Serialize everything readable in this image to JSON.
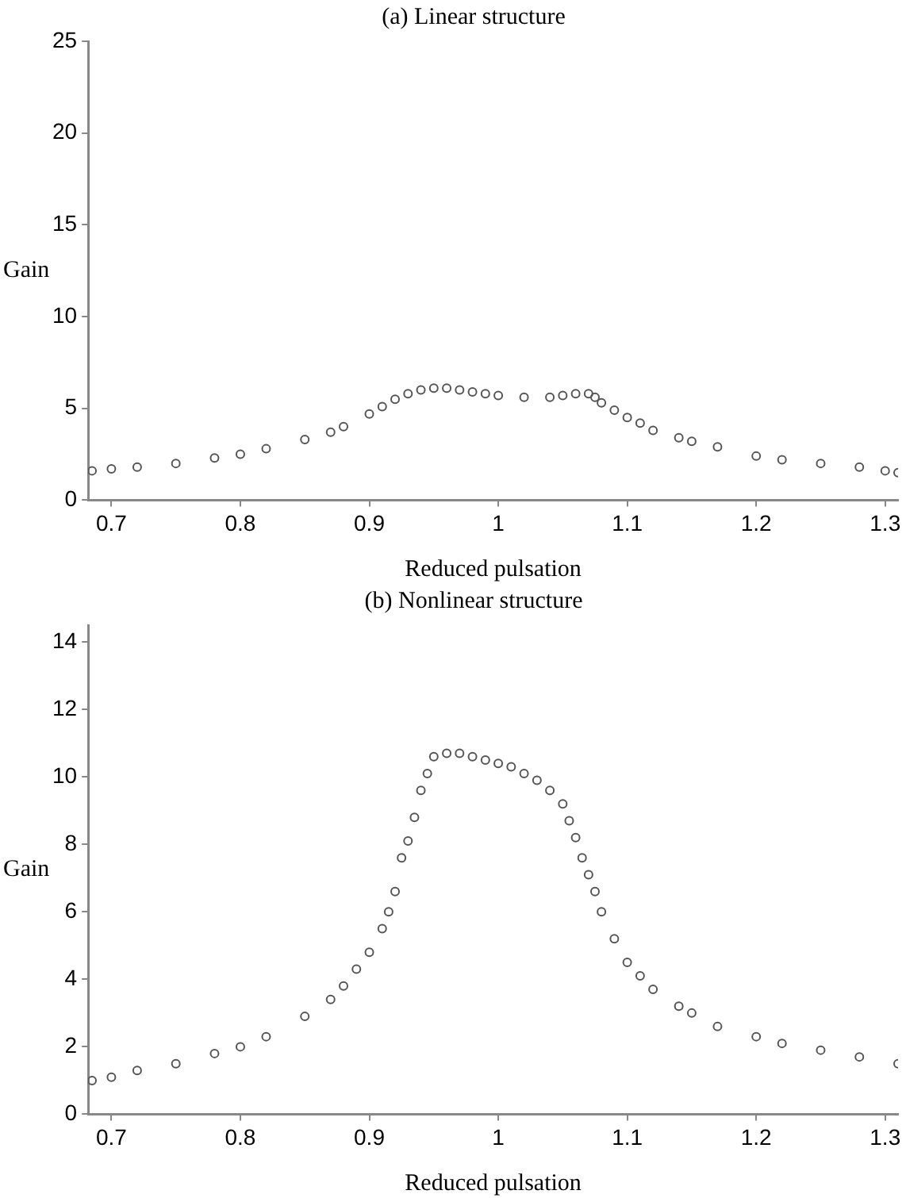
{
  "chart_data": [
    {
      "type": "scatter",
      "title": "(a) Linear structure",
      "xlabel": "Reduced pulsation",
      "ylabel": "Gain",
      "marker": "circle",
      "grid": false,
      "legend": false,
      "xlim": [
        0.682,
        1.31
      ],
      "xticks": [
        0.7,
        0.8,
        0.9,
        1,
        1.1,
        1.2,
        1.3
      ],
      "ylim": [
        0,
        25
      ],
      "yticks": [
        0,
        5,
        10,
        15,
        20,
        25
      ],
      "series": [
        {
          "color": "#555555",
          "x": [
            0.685,
            0.7,
            0.72,
            0.75,
            0.78,
            0.8,
            0.82,
            0.85,
            0.87,
            0.88,
            0.9,
            0.91,
            0.92,
            0.93,
            0.94,
            0.95,
            0.96,
            0.97,
            0.98,
            0.99,
            1.0,
            1.02,
            1.04,
            1.05,
            1.06,
            1.07,
            1.075,
            1.08,
            1.09,
            1.1,
            1.11,
            1.12,
            1.14,
            1.15,
            1.17,
            1.2,
            1.22,
            1.25,
            1.28,
            1.3,
            1.31
          ],
          "values": [
            1.6,
            1.7,
            1.8,
            2.0,
            2.3,
            2.5,
            2.8,
            3.3,
            3.7,
            4.0,
            4.7,
            5.1,
            5.5,
            5.8,
            6.0,
            6.1,
            6.1,
            6.0,
            5.9,
            5.8,
            5.7,
            5.6,
            5.6,
            5.7,
            5.8,
            5.8,
            5.6,
            5.3,
            4.9,
            4.5,
            4.2,
            3.8,
            3.4,
            3.2,
            2.9,
            2.4,
            2.2,
            2.0,
            1.8,
            1.6,
            1.5
          ]
        }
      ]
    },
    {
      "type": "scatter",
      "title": "(b) Nonlinear structure",
      "xlabel": "Reduced pulsation",
      "ylabel": "Gain",
      "marker": "circle",
      "grid": false,
      "legend": false,
      "xlim": [
        0.682,
        1.31
      ],
      "xticks": [
        0.7,
        0.8,
        0.9,
        1,
        1.1,
        1.2,
        1.3
      ],
      "ylim": [
        0,
        14.5
      ],
      "yticks": [
        0,
        2,
        4,
        6,
        8,
        10,
        12,
        14
      ],
      "series": [
        {
          "color": "#555555",
          "x": [
            0.685,
            0.7,
            0.72,
            0.75,
            0.78,
            0.8,
            0.82,
            0.85,
            0.87,
            0.88,
            0.89,
            0.9,
            0.91,
            0.915,
            0.92,
            0.925,
            0.93,
            0.935,
            0.94,
            0.945,
            0.95,
            0.96,
            0.97,
            0.98,
            0.99,
            1.0,
            1.01,
            1.02,
            1.03,
            1.04,
            1.05,
            1.055,
            1.06,
            1.065,
            1.07,
            1.075,
            1.08,
            1.09,
            1.1,
            1.11,
            1.12,
            1.14,
            1.15,
            1.17,
            1.2,
            1.22,
            1.25,
            1.28,
            1.31
          ],
          "values": [
            1.0,
            1.1,
            1.3,
            1.5,
            1.8,
            2.0,
            2.3,
            2.9,
            3.4,
            3.8,
            4.3,
            4.8,
            5.5,
            6.0,
            6.6,
            7.6,
            8.1,
            8.8,
            9.6,
            10.1,
            10.6,
            10.7,
            10.7,
            10.6,
            10.5,
            10.4,
            10.3,
            10.1,
            9.9,
            9.6,
            9.2,
            8.7,
            8.2,
            7.6,
            7.1,
            6.6,
            6.0,
            5.2,
            4.5,
            4.1,
            3.7,
            3.2,
            3.0,
            2.6,
            2.3,
            2.1,
            1.9,
            1.7,
            1.5
          ]
        }
      ]
    }
  ]
}
